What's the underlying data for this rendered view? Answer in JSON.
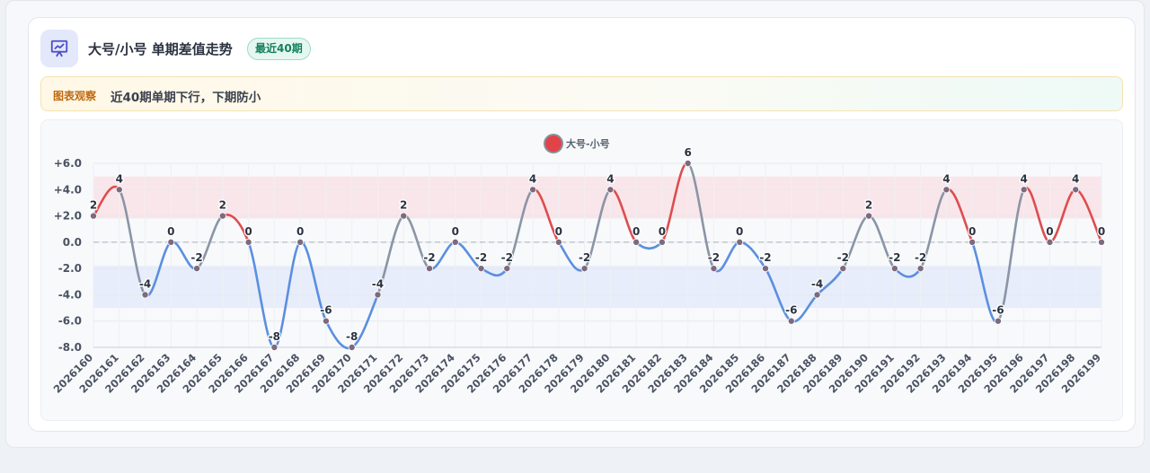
{
  "header": {
    "title": "大号/小号 单期差值走势",
    "badge": "最近40期"
  },
  "notice": {
    "tag": "图表观察",
    "text": "近40期单期下行，下期防小"
  },
  "colors": {
    "positive": "#dd4d4f",
    "negative": "#5b8fdf",
    "neutral": "#8a95a6",
    "band_positive": "#f9e3e6",
    "band_negative": "#e4ebfa",
    "legend_marker": "#e04448",
    "point": "#7d6a7e"
  },
  "chart_data": {
    "type": "line",
    "legend": [
      "大号-小号"
    ],
    "series": [
      {
        "name": "大号-小号",
        "values": [
          2,
          4,
          -4,
          0,
          -2,
          2,
          0,
          -8,
          0,
          -6,
          -8,
          -4,
          2,
          -2,
          0,
          -2,
          -2,
          4,
          0,
          -2,
          4,
          0,
          0,
          6,
          -2,
          0,
          -2,
          -6,
          -4,
          -2,
          2,
          -2,
          -2,
          4,
          0,
          -6,
          4,
          0,
          4,
          0
        ]
      }
    ],
    "categories": [
      "2026160",
      "2026161",
      "2026162",
      "2026163",
      "2026164",
      "2026165",
      "2026166",
      "2026167",
      "2026168",
      "2026169",
      "2026170",
      "2026171",
      "2026172",
      "2026173",
      "2026174",
      "2026175",
      "2026176",
      "2026177",
      "2026178",
      "2026179",
      "2026180",
      "2026181",
      "2026182",
      "2026183",
      "2026184",
      "2026185",
      "2026186",
      "2026187",
      "2026188",
      "2026189",
      "2026190",
      "2026191",
      "2026192",
      "2026193",
      "2026194",
      "2026195",
      "2026196",
      "2026197",
      "2026198",
      "2026199"
    ],
    "y_ticks": [
      "+6.0",
      "+4.0",
      "+2.0",
      "0.0",
      "-2.0",
      "-4.0",
      "-6.0",
      "-8.0"
    ],
    "ylim": [
      -8,
      6
    ],
    "bands": [
      {
        "from": 1.8,
        "to": 5
      },
      {
        "from": -5,
        "to": -1.8
      }
    ],
    "zero_line": "dashed",
    "grid": true,
    "legend_position": "top-center"
  }
}
